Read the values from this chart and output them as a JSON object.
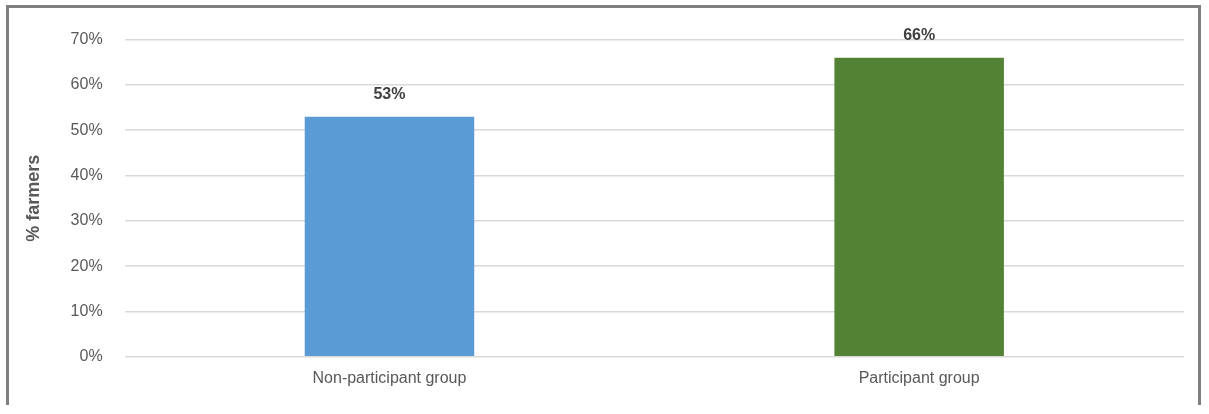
{
  "chart_data": {
    "type": "bar",
    "ylabel": "% farmers",
    "categories": [
      "Non-participant group",
      "Participant group"
    ],
    "values": [
      53,
      66
    ],
    "colors": [
      "#5b9bd5",
      "#548235"
    ],
    "value_labels": [
      "53%",
      "66%"
    ],
    "ylim": [
      0,
      70
    ],
    "yticks": [
      {
        "value": 0,
        "label": "0%"
      },
      {
        "value": 10,
        "label": "10%"
      },
      {
        "value": 20,
        "label": "20%"
      },
      {
        "value": 30,
        "label": "30%"
      },
      {
        "value": 40,
        "label": "40%"
      },
      {
        "value": 50,
        "label": "50%"
      },
      {
        "value": 60,
        "label": "60%"
      },
      {
        "value": 70,
        "label": "70%"
      }
    ],
    "grid": "y",
    "legend": false
  }
}
